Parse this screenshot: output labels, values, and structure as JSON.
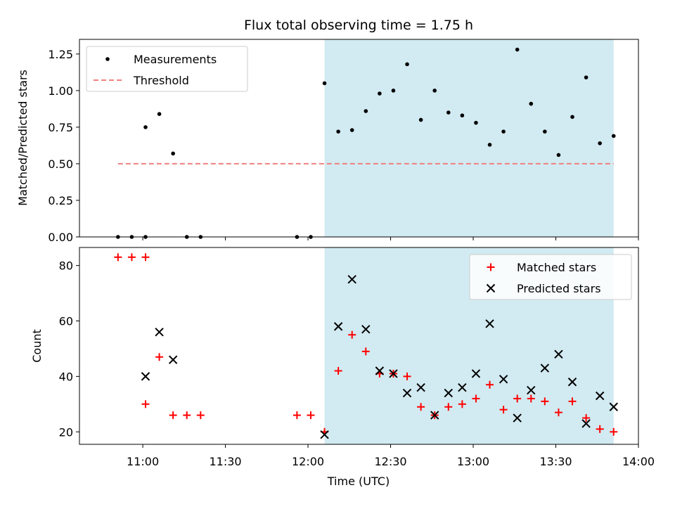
{
  "chart_data": [
    {
      "type": "scatter",
      "title": "Flux total observing time = 1.75 h",
      "ylabel": "Matched/Predicted stars",
      "xlabel": "",
      "xlim": [
        "10:37",
        "14:00"
      ],
      "ylim": [
        0,
        1.35
      ],
      "yticks": [
        "0.00",
        "0.25",
        "0.50",
        "0.75",
        "1.00",
        "1.25"
      ],
      "shaded_region": {
        "start": "12:06",
        "end": "13:51",
        "color": "#add8e6"
      },
      "legend": {
        "position": "top-left",
        "entries": [
          "Measurements",
          "Threshold"
        ]
      },
      "series": [
        {
          "name": "Measurements",
          "marker": "dot",
          "color": "#000000",
          "points": [
            {
              "t": "10:51",
              "y": 0.0
            },
            {
              "t": "10:56",
              "y": 0.0
            },
            {
              "t": "11:01",
              "y": 0.0
            },
            {
              "t": "11:01",
              "y": 0.75
            },
            {
              "t": "11:06",
              "y": 0.84
            },
            {
              "t": "11:11",
              "y": 0.57
            },
            {
              "t": "11:16",
              "y": 0.0
            },
            {
              "t": "11:21",
              "y": 0.0
            },
            {
              "t": "11:56",
              "y": 0.0
            },
            {
              "t": "12:01",
              "y": 0.0
            },
            {
              "t": "12:06",
              "y": 1.05
            },
            {
              "t": "12:11",
              "y": 0.72
            },
            {
              "t": "12:16",
              "y": 0.73
            },
            {
              "t": "12:21",
              "y": 0.86
            },
            {
              "t": "12:26",
              "y": 0.98
            },
            {
              "t": "12:31",
              "y": 1.0
            },
            {
              "t": "12:36",
              "y": 1.18
            },
            {
              "t": "12:41",
              "y": 0.8
            },
            {
              "t": "12:46",
              "y": 1.0
            },
            {
              "t": "12:51",
              "y": 0.85
            },
            {
              "t": "12:56",
              "y": 0.83
            },
            {
              "t": "13:01",
              "y": 0.78
            },
            {
              "t": "13:06",
              "y": 0.63
            },
            {
              "t": "13:11",
              "y": 0.72
            },
            {
              "t": "13:16",
              "y": 1.28
            },
            {
              "t": "13:21",
              "y": 0.91
            },
            {
              "t": "13:26",
              "y": 0.72
            },
            {
              "t": "13:31",
              "y": 0.56
            },
            {
              "t": "13:36",
              "y": 0.82
            },
            {
              "t": "13:41",
              "y": 1.09
            },
            {
              "t": "13:46",
              "y": 0.64
            },
            {
              "t": "13:51",
              "y": 0.69
            }
          ]
        },
        {
          "name": "Threshold",
          "marker": "dashed-line",
          "color": "#f08080",
          "points": [
            {
              "t": "10:51",
              "y": 0.5
            },
            {
              "t": "13:51",
              "y": 0.5
            }
          ]
        }
      ]
    },
    {
      "type": "scatter",
      "title": "",
      "ylabel": "Count",
      "xlabel": "Time (UTC)",
      "xlim": [
        "10:37",
        "14:00"
      ],
      "ylim": [
        15.5,
        86.5
      ],
      "yticks": [
        "20",
        "40",
        "60",
        "80"
      ],
      "xticks": [
        "11:00",
        "11:30",
        "12:00",
        "12:30",
        "13:00",
        "13:30",
        "14:00"
      ],
      "shaded_region": {
        "start": "12:06",
        "end": "13:51",
        "color": "#add8e6"
      },
      "legend": {
        "position": "top-right",
        "entries": [
          "Matched stars",
          "Predicted stars"
        ]
      },
      "series": [
        {
          "name": "Matched stars",
          "marker": "plus",
          "color": "#ff0000",
          "points": [
            {
              "t": "10:51",
              "y": 83
            },
            {
              "t": "10:56",
              "y": 83
            },
            {
              "t": "11:01",
              "y": 83
            },
            {
              "t": "11:01",
              "y": 30
            },
            {
              "t": "11:06",
              "y": 47
            },
            {
              "t": "11:11",
              "y": 26
            },
            {
              "t": "11:16",
              "y": 26
            },
            {
              "t": "11:21",
              "y": 26
            },
            {
              "t": "11:56",
              "y": 26
            },
            {
              "t": "12:01",
              "y": 26
            },
            {
              "t": "12:06",
              "y": 20
            },
            {
              "t": "12:11",
              "y": 42
            },
            {
              "t": "12:16",
              "y": 55
            },
            {
              "t": "12:21",
              "y": 49
            },
            {
              "t": "12:26",
              "y": 41
            },
            {
              "t": "12:31",
              "y": 41
            },
            {
              "t": "12:36",
              "y": 40
            },
            {
              "t": "12:41",
              "y": 29
            },
            {
              "t": "12:46",
              "y": 26
            },
            {
              "t": "12:51",
              "y": 29
            },
            {
              "t": "12:56",
              "y": 30
            },
            {
              "t": "13:01",
              "y": 32
            },
            {
              "t": "13:06",
              "y": 37
            },
            {
              "t": "13:11",
              "y": 28
            },
            {
              "t": "13:16",
              "y": 32
            },
            {
              "t": "13:21",
              "y": 32
            },
            {
              "t": "13:26",
              "y": 31
            },
            {
              "t": "13:31",
              "y": 27
            },
            {
              "t": "13:36",
              "y": 31
            },
            {
              "t": "13:41",
              "y": 25
            },
            {
              "t": "13:46",
              "y": 21
            },
            {
              "t": "13:51",
              "y": 20
            }
          ]
        },
        {
          "name": "Predicted stars",
          "marker": "x",
          "color": "#000000",
          "points": [
            {
              "t": "11:01",
              "y": 40
            },
            {
              "t": "11:06",
              "y": 56
            },
            {
              "t": "11:11",
              "y": 46
            },
            {
              "t": "12:06",
              "y": 19
            },
            {
              "t": "12:11",
              "y": 58
            },
            {
              "t": "12:16",
              "y": 75
            },
            {
              "t": "12:21",
              "y": 57
            },
            {
              "t": "12:26",
              "y": 42
            },
            {
              "t": "12:31",
              "y": 41
            },
            {
              "t": "12:36",
              "y": 34
            },
            {
              "t": "12:41",
              "y": 36
            },
            {
              "t": "12:46",
              "y": 26
            },
            {
              "t": "12:51",
              "y": 34
            },
            {
              "t": "12:56",
              "y": 36
            },
            {
              "t": "13:01",
              "y": 41
            },
            {
              "t": "13:06",
              "y": 59
            },
            {
              "t": "13:11",
              "y": 39
            },
            {
              "t": "13:16",
              "y": 25
            },
            {
              "t": "13:21",
              "y": 35
            },
            {
              "t": "13:26",
              "y": 43
            },
            {
              "t": "13:31",
              "y": 48
            },
            {
              "t": "13:36",
              "y": 38
            },
            {
              "t": "13:41",
              "y": 23
            },
            {
              "t": "13:46",
              "y": 33
            },
            {
              "t": "13:51",
              "y": 29
            }
          ]
        }
      ]
    }
  ]
}
